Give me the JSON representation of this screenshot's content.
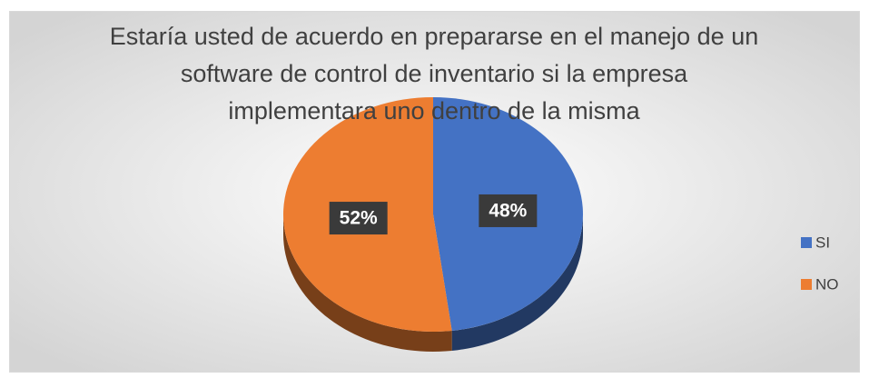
{
  "chart_data": {
    "type": "pie",
    "title": "Estaría usted de acuerdo en prepararse en el manejo de un software de control de inventario si la empresa implementara uno dentro de la misma",
    "categories": [
      "SI",
      "NO"
    ],
    "values": [
      48,
      52
    ],
    "value_labels": [
      "48%",
      "52%"
    ],
    "colors": [
      "#4472c4",
      "#ed7d31"
    ],
    "legend": "right"
  }
}
